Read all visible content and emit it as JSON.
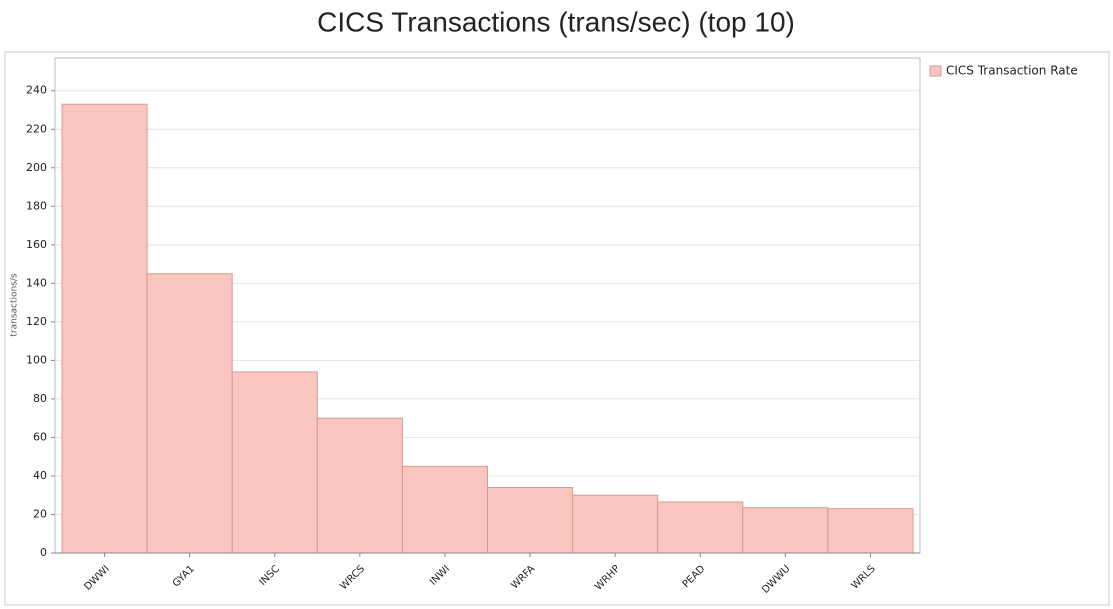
{
  "chart_data": {
    "type": "bar",
    "title": "CICS Transactions (trans/sec) (top 10)",
    "y_label": "transactions/s",
    "categories": [
      "DWWI",
      "GYA1",
      "INSC",
      "WRCS",
      "INWI",
      "WRFA",
      "WRHP",
      "PEAD",
      "DWWU",
      "WRLS"
    ],
    "series": [
      {
        "name": "CICS Transaction Rate",
        "color": "#f8c6bf",
        "values": [
          233,
          145,
          94,
          70,
          45,
          34,
          30,
          26.5,
          23.5,
          23
        ]
      }
    ],
    "ylim": [
      0,
      257
    ],
    "yticks": [
      0,
      20,
      40,
      60,
      80,
      100,
      120,
      140,
      160,
      180,
      200,
      220,
      240
    ],
    "grid": true,
    "legend": "right"
  }
}
